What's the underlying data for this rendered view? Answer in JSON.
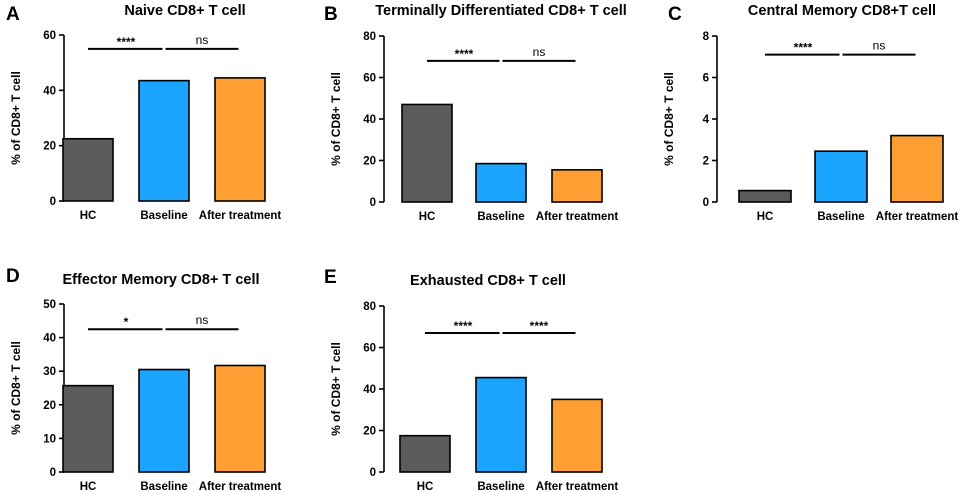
{
  "colors": {
    "HC": "#5b5b5b",
    "Baseline": "#1aa3ff",
    "After treatment": "#ff9f33"
  },
  "chart_data": [
    {
      "panel": "A",
      "type": "bar",
      "title": "Naive CD8+ T cell",
      "ylabel": "% of CD8+ T cell",
      "categories": [
        "HC",
        "Baseline",
        "After treatment"
      ],
      "values": [
        22.5,
        43.5,
        44.5
      ],
      "ylim": [
        0,
        60
      ],
      "yticks": [
        0,
        20,
        40,
        60
      ],
      "comparisons": [
        {
          "from": 0,
          "to": 1,
          "label": "****"
        },
        {
          "from": 1,
          "to": 2,
          "label": "ns"
        }
      ],
      "bracket_y": 55
    },
    {
      "panel": "B",
      "type": "bar",
      "title": "Terminally Differentiated CD8+ T cell",
      "ylabel": "% of CD8+ T cell",
      "categories": [
        "HC",
        "Baseline",
        "After treatment"
      ],
      "values": [
        47,
        18.5,
        15.5
      ],
      "ylim": [
        0,
        80
      ],
      "yticks": [
        0,
        20,
        40,
        60,
        80
      ],
      "comparisons": [
        {
          "from": 0,
          "to": 1,
          "label": "****"
        },
        {
          "from": 1,
          "to": 2,
          "label": "ns"
        }
      ],
      "bracket_y": 68
    },
    {
      "panel": "C",
      "type": "bar",
      "title": "Central Memory CD8+T cell",
      "ylabel": "% of CD8+ T cell",
      "categories": [
        "HC",
        "Baseline",
        "After treatment"
      ],
      "values": [
        0.55,
        2.45,
        3.2
      ],
      "ylim": [
        0,
        8
      ],
      "yticks": [
        0,
        2,
        4,
        6,
        8
      ],
      "comparisons": [
        {
          "from": 0,
          "to": 1,
          "label": "****"
        },
        {
          "from": 1,
          "to": 2,
          "label": "ns"
        }
      ],
      "bracket_y": 7.1
    },
    {
      "panel": "D",
      "type": "bar",
      "title": "Effector Memory CD8+ T cell",
      "ylabel": "% of CD8+ T cell",
      "categories": [
        "HC",
        "Baseline",
        "After treatment"
      ],
      "values": [
        25.7,
        30.5,
        31.7
      ],
      "ylim": [
        0,
        50
      ],
      "yticks": [
        0,
        10,
        20,
        30,
        40,
        50
      ],
      "comparisons": [
        {
          "from": 0,
          "to": 1,
          "label": "*"
        },
        {
          "from": 1,
          "to": 2,
          "label": "ns"
        }
      ],
      "bracket_y": 42.5
    },
    {
      "panel": "E",
      "type": "bar",
      "title": "Exhausted CD8+ T cell",
      "ylabel": "% of CD8+ T cell",
      "categories": [
        "HC",
        "Baseline",
        "After treatment"
      ],
      "values": [
        17.5,
        45.5,
        35
      ],
      "ylim": [
        0,
        80
      ],
      "yticks": [
        0,
        20,
        40,
        60,
        80
      ],
      "comparisons": [
        {
          "from": 0,
          "to": 1,
          "label": "****"
        },
        {
          "from": 1,
          "to": 2,
          "label": "****"
        }
      ],
      "bracket_y": 67
    }
  ]
}
